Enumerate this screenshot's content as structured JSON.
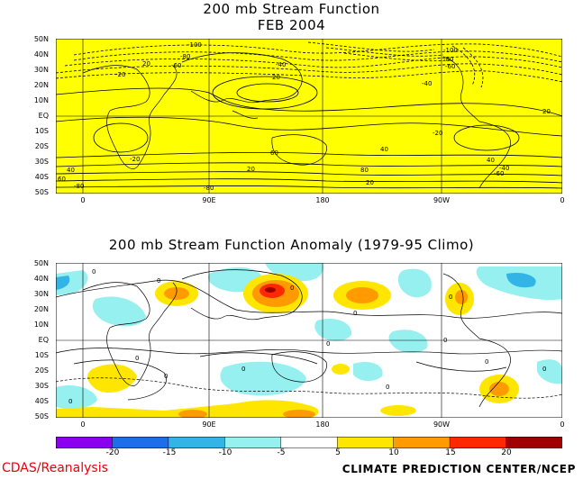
{
  "top_panel": {
    "title_line1": "200 mb Stream Function",
    "title_line2": "FEB 2004",
    "background_color": "#ffff00",
    "lat_labels": [
      "50N",
      "40N",
      "30N",
      "20N",
      "10N",
      "EQ",
      "10S",
      "20S",
      "30S",
      "40S",
      "50S"
    ],
    "lon_labels": [
      "0",
      "90E",
      "180",
      "90W",
      "0"
    ],
    "contour_labels": [
      "-100",
      "-80",
      "-60",
      "-40",
      "-20",
      "20",
      "40",
      "60",
      "80",
      "-100",
      "-80",
      "-60",
      "-40",
      "-20",
      "20",
      "-20",
      "40",
      "20",
      "60",
      "-80",
      "-80",
      "40",
      "20",
      "-60",
      "-40",
      "20"
    ]
  },
  "bottom_panel": {
    "title": "200 mb Stream Function Anomaly (1979-95 Climo)",
    "lat_labels": [
      "50N",
      "40N",
      "30N",
      "20N",
      "10N",
      "EQ",
      "10S",
      "20S",
      "30S",
      "40S",
      "50S"
    ],
    "lon_labels": [
      "0",
      "90E",
      "180",
      "90W",
      "0"
    ],
    "contour_labels": [
      "0",
      "0",
      "0",
      "0",
      "0",
      "0",
      "0",
      "0",
      "0",
      "0",
      "0",
      "0",
      "0",
      "0"
    ]
  },
  "colorbar": {
    "labels": [
      "-20",
      "-15",
      "-10",
      "-5",
      "5",
      "10",
      "15",
      "20"
    ],
    "colors": [
      "#8c00f0",
      "#1e6eeb",
      "#32b4e6",
      "#96f0f0",
      "#ffffff",
      "#ffe600",
      "#ff9b00",
      "#ff2800",
      "#a00000"
    ]
  },
  "footer": {
    "left": "CDAS/Reanalysis",
    "right": "CLIMATE PREDICTION CENTER/NCEP"
  }
}
